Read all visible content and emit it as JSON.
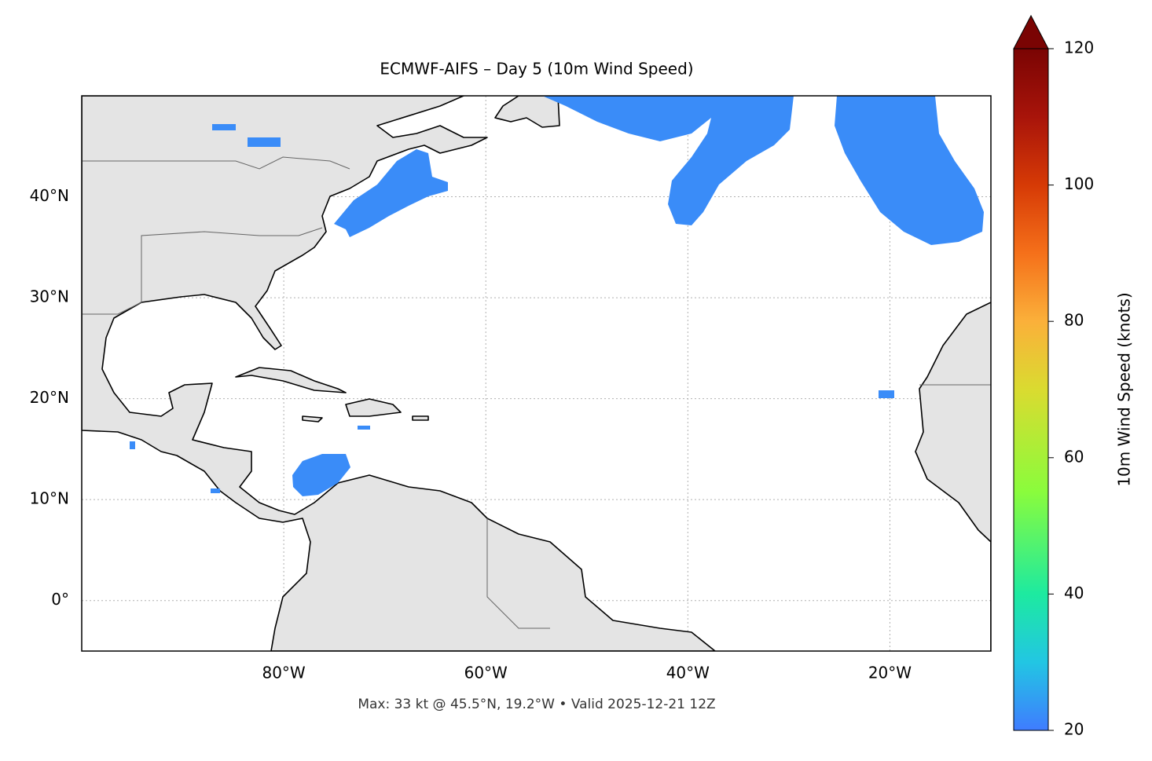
{
  "map": {
    "title": "ECMWF-AIFS – Day 5 (10m Wind Speed)",
    "footer": "Max: 33 kt @ 45.5°N, 19.2°W • Valid 2025-12-21 12Z",
    "xlim": [
      -100,
      -10
    ],
    "ylim": [
      -5,
      50
    ],
    "xticks": [
      {
        "value": -80,
        "label": "80°W"
      },
      {
        "value": -60,
        "label": "60°W"
      },
      {
        "value": -40,
        "label": "40°W"
      },
      {
        "value": -20,
        "label": "20°W"
      }
    ],
    "yticks": [
      {
        "value": 0,
        "label": "0°"
      },
      {
        "value": 10,
        "label": "10°N"
      },
      {
        "value": 20,
        "label": "20°N"
      },
      {
        "value": 30,
        "label": "30°N"
      },
      {
        "value": 40,
        "label": "40°N"
      }
    ],
    "grid": true,
    "colorbar": {
      "label": "10m Wind Speed (knots)",
      "lim": [
        20,
        120
      ],
      "ticks": [
        20,
        40,
        60,
        80,
        100,
        120
      ]
    }
  }
}
